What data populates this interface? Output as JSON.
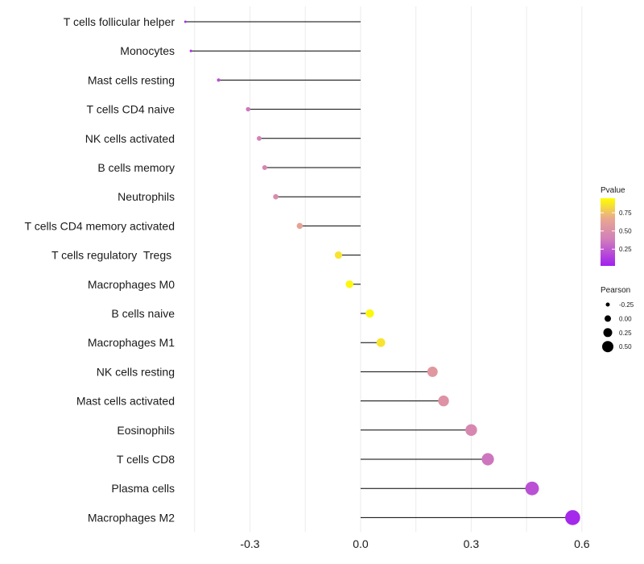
{
  "chart_data": {
    "type": "lollipop",
    "title": "",
    "xlabel": "",
    "ylabel": "",
    "xlim": [
      -0.48,
      0.62
    ],
    "x_ticks": [
      {
        "value": -0.3,
        "label": "-0.3"
      },
      {
        "value": 0.0,
        "label": "0.0"
      },
      {
        "value": 0.3,
        "label": "0.3"
      },
      {
        "value": 0.6,
        "label": "0.6"
      }
    ],
    "baseline": 0.0,
    "categories": [
      {
        "label": "T cells follicular helper",
        "pearson": -0.475,
        "pvalue": 0.07
      },
      {
        "label": "Monocytes",
        "pearson": -0.46,
        "pvalue": 0.08
      },
      {
        "label": "Mast cells resting",
        "pearson": -0.385,
        "pvalue": 0.18
      },
      {
        "label": "T cells CD4 naive",
        "pearson": -0.305,
        "pvalue": 0.3
      },
      {
        "label": "NK cells activated",
        "pearson": -0.275,
        "pvalue": 0.35
      },
      {
        "label": "B cells memory",
        "pearson": -0.26,
        "pvalue": 0.38
      },
      {
        "label": "Neutrophils",
        "pearson": -0.23,
        "pvalue": 0.42
      },
      {
        "label": "T cells CD4 memory activated",
        "pearson": -0.165,
        "pvalue": 0.6
      },
      {
        "label": "T cells regulatory  Tregs ",
        "pearson": -0.06,
        "pvalue": 0.85
      },
      {
        "label": "Macrophages M0",
        "pearson": -0.03,
        "pvalue": 0.92
      },
      {
        "label": "B cells naive",
        "pearson": 0.025,
        "pvalue": 0.92
      },
      {
        "label": "Macrophages M1",
        "pearson": 0.055,
        "pvalue": 0.85
      },
      {
        "label": "NK cells resting",
        "pearson": 0.195,
        "pvalue": 0.52
      },
      {
        "label": "Mast cells activated",
        "pearson": 0.225,
        "pvalue": 0.48
      },
      {
        "label": "Eosinophils",
        "pearson": 0.3,
        "pvalue": 0.4
      },
      {
        "label": "T cells CD8",
        "pearson": 0.345,
        "pvalue": 0.3
      },
      {
        "label": "Plasma cells",
        "pearson": 0.465,
        "pvalue": 0.18
      },
      {
        "label": "Macrophages M2",
        "pearson": 0.575,
        "pvalue": 0.05
      }
    ],
    "legend": {
      "color": {
        "title": "Pvalue",
        "range": [
          0.02,
          0.95
        ],
        "ticks": [
          {
            "value": 0.75,
            "label": "0.75"
          },
          {
            "value": 0.5,
            "label": "0.50"
          },
          {
            "value": 0.25,
            "label": "0.25"
          }
        ],
        "stops": [
          "#a020f0",
          "#d27fba",
          "#e9a88f",
          "#ffff00"
        ]
      },
      "size": {
        "title": "Pearson",
        "entries": [
          {
            "value": -0.25,
            "label": "-0.25"
          },
          {
            "value": 0.0,
            "label": "0.00"
          },
          {
            "value": 0.25,
            "label": "0.25"
          },
          {
            "value": 0.5,
            "label": "0.50"
          }
        ],
        "color": "#000000"
      },
      "position": "right"
    },
    "grid": true
  }
}
